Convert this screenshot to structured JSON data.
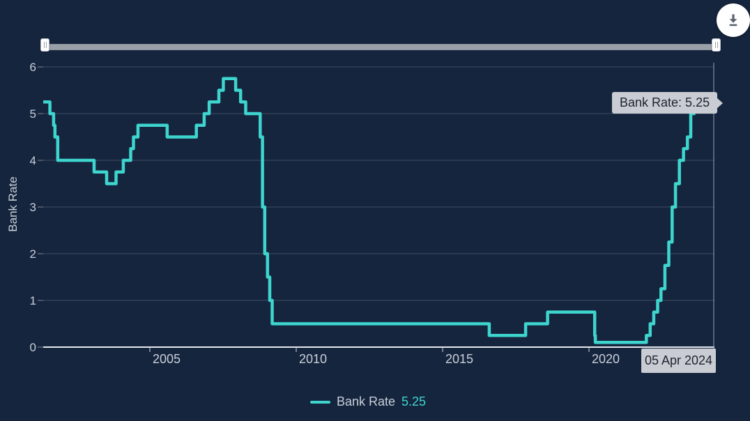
{
  "colors": {
    "background": "#16253e",
    "series_teal": "#3dd5ce",
    "gridline": "#3e4a63",
    "baseline": "#e6e9ee",
    "axis_label": "#c8cfd9",
    "crosshair": "#98a0b0",
    "tooltip_bg": "#c9ccd2",
    "tooltip_text": "#1d2330",
    "slider_track": "#99a0a8",
    "download_icon": "#5b636d"
  },
  "toolbar": {
    "download_icon_name": "download-icon"
  },
  "tooltip": {
    "text": "Bank Rate: 5.25"
  },
  "date_tooltip": {
    "text": "05 Apr 2024"
  },
  "legend": {
    "label": "Bank Rate",
    "value": "5.25"
  },
  "chart_data": {
    "type": "line",
    "step": true,
    "ylabel": "Bank Rate",
    "xlabel": "",
    "grid": true,
    "legend_position": "bottom",
    "y_ticks": [
      0,
      1,
      2,
      3,
      4,
      5,
      6
    ],
    "ylim": [
      0,
      6.1
    ],
    "x_ticks": [
      2005,
      2010,
      2015,
      2020
    ],
    "xlim_dates": [
      "2001-05-10",
      "2024-04-05"
    ],
    "hover_point": {
      "date": "2024-04-05",
      "value": 5.25
    },
    "series": [
      {
        "name": "Bank Rate",
        "color": "#3dd5ce",
        "points": [
          [
            "2001-05-10",
            5.25
          ],
          [
            "2001-08-02",
            5.0
          ],
          [
            "2001-09-18",
            4.75
          ],
          [
            "2001-10-04",
            4.5
          ],
          [
            "2001-11-08",
            4.0
          ],
          [
            "2003-02-06",
            3.75
          ],
          [
            "2003-07-10",
            3.5
          ],
          [
            "2003-11-06",
            3.75
          ],
          [
            "2004-02-05",
            4.0
          ],
          [
            "2004-05-06",
            4.25
          ],
          [
            "2004-06-10",
            4.5
          ],
          [
            "2004-08-05",
            4.75
          ],
          [
            "2005-08-04",
            4.5
          ],
          [
            "2006-08-03",
            4.75
          ],
          [
            "2006-11-09",
            5.0
          ],
          [
            "2007-01-11",
            5.25
          ],
          [
            "2007-05-10",
            5.5
          ],
          [
            "2007-07-05",
            5.75
          ],
          [
            "2007-12-06",
            5.5
          ],
          [
            "2008-02-07",
            5.25
          ],
          [
            "2008-04-10",
            5.0
          ],
          [
            "2008-10-08",
            4.5
          ],
          [
            "2008-11-06",
            3.0
          ],
          [
            "2008-12-04",
            2.0
          ],
          [
            "2009-01-08",
            1.5
          ],
          [
            "2009-02-05",
            1.0
          ],
          [
            "2009-03-05",
            0.5
          ],
          [
            "2016-08-04",
            0.25
          ],
          [
            "2017-11-02",
            0.5
          ],
          [
            "2018-08-02",
            0.75
          ],
          [
            "2020-03-11",
            0.25
          ],
          [
            "2020-03-19",
            0.1
          ],
          [
            "2021-12-16",
            0.25
          ],
          [
            "2022-02-03",
            0.5
          ],
          [
            "2022-03-17",
            0.75
          ],
          [
            "2022-05-05",
            1.0
          ],
          [
            "2022-06-16",
            1.25
          ],
          [
            "2022-08-04",
            1.75
          ],
          [
            "2022-09-22",
            2.25
          ],
          [
            "2022-11-03",
            3.0
          ],
          [
            "2022-12-15",
            3.5
          ],
          [
            "2023-02-02",
            4.0
          ],
          [
            "2023-03-23",
            4.25
          ],
          [
            "2023-05-11",
            4.5
          ],
          [
            "2023-06-22",
            5.0
          ],
          [
            "2023-08-03",
            5.25
          ],
          [
            "2024-04-05",
            5.25
          ]
        ]
      }
    ]
  }
}
